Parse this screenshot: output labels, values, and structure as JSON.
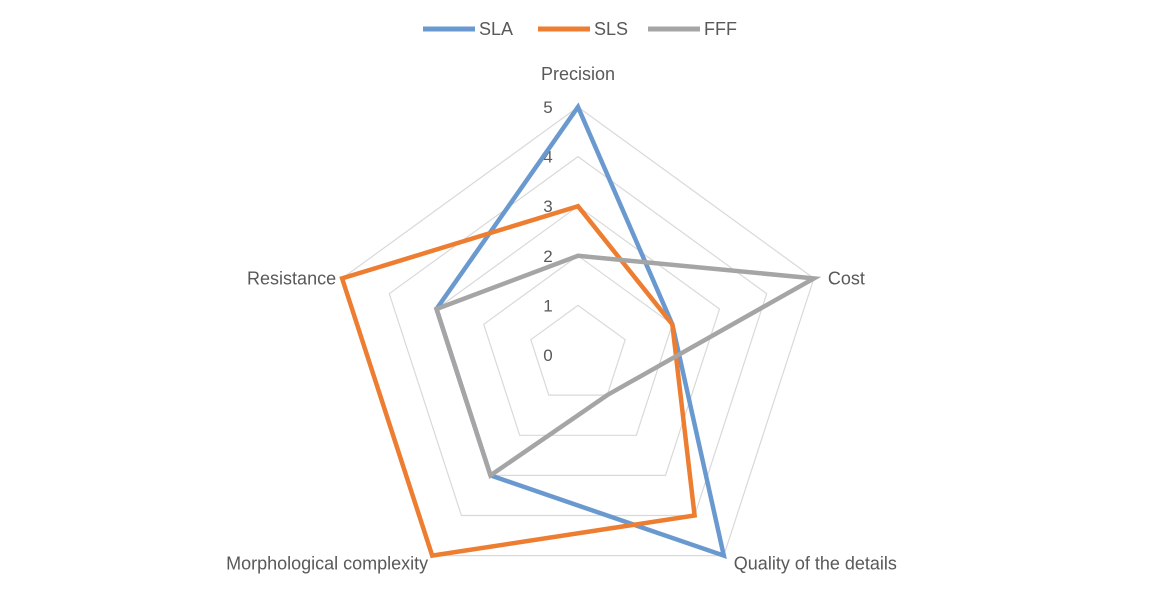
{
  "chart_data": {
    "type": "radar",
    "axes": [
      "Precision",
      "Cost",
      "Quality of the details",
      "Morphological complexity",
      "Resistance"
    ],
    "rlim": [
      0,
      5
    ],
    "ticks": [
      "0",
      "1",
      "2",
      "3",
      "4",
      "5"
    ],
    "grid": true,
    "legend": "top-center",
    "series": [
      {
        "name": "SLA",
        "values": [
          5,
          2,
          5,
          3,
          3
        ],
        "color": "#6a99cf"
      },
      {
        "name": "SLS",
        "values": [
          3,
          2,
          4,
          5,
          5
        ],
        "color": "#ed7d31"
      },
      {
        "name": "FFF",
        "values": [
          2,
          5,
          1,
          3,
          3
        ],
        "color": "#a5a5a5"
      }
    ]
  }
}
